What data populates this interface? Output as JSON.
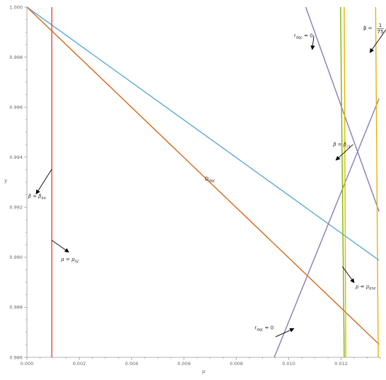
{
  "chart_data": {
    "type": "line",
    "title": "",
    "xlabel": "μ",
    "ylabel": "y",
    "xlim": [
      0,
      0.0135
    ],
    "ylim": [
      0.986,
      1.0
    ],
    "x_ticks": [
      "0.000",
      "0.002",
      "0.004",
      "0.006",
      "0.008",
      "0.010",
      "0.012"
    ],
    "x_tick_values": [
      0,
      0.002,
      0.004,
      0.006,
      0.008,
      0.01,
      0.012
    ],
    "y_ticks": [
      "0.986",
      "0.988",
      "0.990",
      "0.992",
      "0.994",
      "0.996",
      "0.998",
      "1.000"
    ],
    "y_tick_values": [
      0.986,
      0.988,
      0.99,
      0.992,
      0.994,
      0.996,
      0.998,
      1.0
    ],
    "grid": false,
    "series": [
      {
        "id": "blue-line",
        "color": "#5fa8d3",
        "x": [
          0,
          0.01345
        ],
        "y": [
          1.0,
          0.98988
        ]
      },
      {
        "id": "orange-line",
        "color": "#d2691e",
        "x": [
          0,
          0.01345
        ],
        "y": [
          1.0,
          0.98652
        ]
      },
      {
        "id": "red-vertical",
        "color": "#e0483b",
        "x": [
          0.00095,
          0.00095
        ],
        "y": [
          0.986,
          1.0
        ]
      },
      {
        "id": "purple-rising",
        "color": "#8a7ab8",
        "x": [
          0.00945,
          0.01345
        ],
        "y": [
          0.986,
          0.99634
        ]
      },
      {
        "id": "purple-falling",
        "color": "#8a7ab8",
        "x": [
          0.01065,
          0.01345
        ],
        "y": [
          1.0,
          0.99183
        ]
      },
      {
        "id": "green-vertical",
        "color": "#7ab800",
        "x": [
          0.01198,
          0.01212
        ],
        "y": [
          1.0,
          0.986
        ]
      },
      {
        "id": "gold-vertical-a",
        "color": "#e8b400",
        "x": [
          0.01212,
          0.01218
        ],
        "y": [
          1.0,
          0.986
        ]
      },
      {
        "id": "gold-vertical-b",
        "color": "#e8b400",
        "x": [
          0.01332,
          0.01342
        ],
        "y": [
          1.0,
          0.986
        ]
      }
    ],
    "annotations": [
      {
        "id": "r-dqc-top",
        "base": "r",
        "sub": "dqc",
        "rest": " = 0",
        "italic": false,
        "x": 0.0102,
        "y": 0.9988,
        "arrow_to": [
          0.0109,
          0.9983
        ]
      },
      {
        "id": "beta-75",
        "base": "β = ",
        "frac_num": "1",
        "frac_den": "75",
        "x": 0.01285,
        "y": 0.9991,
        "arrow_to": [
          0.0131,
          0.99818
        ]
      },
      {
        "id": "beta-21",
        "base": "β = β",
        "sub": "21",
        "italic": true,
        "x": 0.0117,
        "y": 0.99445,
        "arrow_to": [
          0.0118,
          0.99388
        ]
      },
      {
        "id": "d-dqc",
        "base": "D",
        "sub": "dqc",
        "rest": "",
        "italic": false,
        "x": 0.0068,
        "y": 0.99307
      },
      {
        "id": "beta-48",
        "base": "β = β",
        "sub": "48",
        "italic": true,
        "x": 5e-05,
        "y": 0.99238,
        "arrow_from": [
          0.00095,
          0.99352
        ],
        "arrow_to": [
          0.00035,
          0.99253
        ]
      },
      {
        "id": "mu-sj",
        "base": "μ = μ",
        "sub": "SJ",
        "italic": true,
        "x": 0.0013,
        "y": 0.98985,
        "arrow_from": [
          0.00095,
          0.99068
        ],
        "arrow_to": [
          0.0016,
          0.9902
        ]
      },
      {
        "id": "mu-em",
        "base": "μ = μ",
        "sub": "EM",
        "italic": true,
        "x": 0.01255,
        "y": 0.98877,
        "arrow_from": [
          0.01205,
          0.98963
        ],
        "arrow_to": [
          0.0125,
          0.98898
        ]
      },
      {
        "id": "r-dqc-bottom",
        "base": "r",
        "sub": "dqc",
        "rest": " = 0",
        "italic": false,
        "x": 0.0087,
        "y": 0.98712,
        "arrow_from": [
          0.0095,
          0.98682
        ],
        "arrow_to": [
          0.0102,
          0.98715
        ]
      }
    ]
  }
}
